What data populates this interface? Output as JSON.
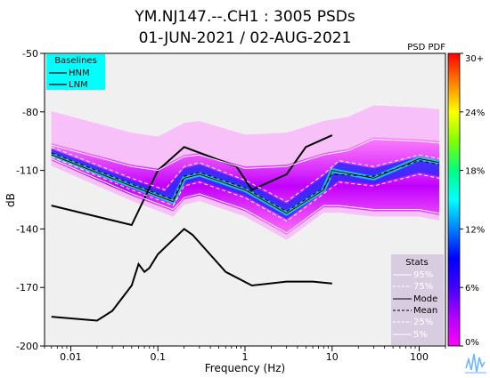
{
  "chart_data": {
    "type": "heatmap",
    "title": "YM.NJ147.--.CH1 : 3005 PSDs",
    "subtitle": "01-JUN-2021 / 02-AUG-2021",
    "xlabel": "Frequency (Hz)",
    "ylabel": "dB",
    "x_scale": "log",
    "xlim": [
      0.005,
      200
    ],
    "ylim": [
      -200,
      -50
    ],
    "x_ticks": [
      0.01,
      0.1,
      1,
      10,
      100
    ],
    "x_tick_labels": [
      "0.01",
      "0.1",
      "1",
      "10",
      "100"
    ],
    "y_ticks": [
      -50,
      -80,
      -110,
      -140,
      -170,
      -200
    ],
    "y_tick_labels": [
      "-50",
      "-80",
      "-110",
      "-140",
      "-170",
      "-200"
    ],
    "colorbar": {
      "title": "PSD PDF",
      "ticks": [
        0,
        6,
        12,
        18,
        24,
        30
      ],
      "tick_labels": [
        "0%",
        "6%",
        "12%",
        "18%",
        "24%",
        "30+"
      ],
      "colors": [
        "#ff00ff",
        "#b000ff",
        "#4000ff",
        "#0000ff",
        "#0080ff",
        "#00ffff",
        "#00ff80",
        "#80ff00",
        "#ffff00",
        "#ff8000",
        "#ff0000"
      ]
    },
    "baselines": {
      "title": "Baselines",
      "items": [
        "HNM",
        "LNM"
      ],
      "HNM": {
        "x": [
          0.006,
          0.05,
          0.1,
          0.2,
          0.8,
          1.2,
          3,
          5,
          10
        ],
        "y": [
          -128,
          -138,
          -110,
          -98,
          -108,
          -120,
          -112,
          -98,
          -92
        ]
      },
      "LNM": {
        "x": [
          0.006,
          0.02,
          0.03,
          0.05,
          0.06,
          0.07,
          0.08,
          0.1,
          0.2,
          0.25,
          0.6,
          1.2,
          3,
          6,
          10
        ],
        "y": [
          -185,
          -187,
          -182,
          -169,
          -158,
          -162,
          -160,
          -153,
          -140,
          -143,
          -162,
          -169,
          -167,
          -167,
          -168
        ]
      }
    },
    "stats": {
      "title": "Stats",
      "items": [
        "95%",
        "75%",
        "Mode",
        "Mean",
        "25%",
        "5%"
      ]
    },
    "series": [
      {
        "name": "95%",
        "x": [
          0.006,
          0.05,
          0.1,
          0.2,
          0.3,
          1,
          3,
          8,
          15,
          30,
          100,
          170
        ],
        "y": [
          -97,
          -108,
          -110,
          -103,
          -102,
          -109,
          -108,
          -102,
          -100,
          -94,
          -95,
          -96
        ]
      },
      {
        "name": "75%",
        "x": [
          0.006,
          0.05,
          0.12,
          0.2,
          0.3,
          1,
          3,
          8,
          12,
          30,
          100,
          170
        ],
        "y": [
          -98,
          -114,
          -120,
          -108,
          -106,
          -115,
          -126,
          -112,
          -105,
          -108,
          -102,
          -104
        ]
      },
      {
        "name": "Mode",
        "x": [
          0.006,
          0.05,
          0.15,
          0.2,
          0.3,
          1,
          3,
          8,
          10,
          30,
          100,
          170
        ],
        "y": [
          -102,
          -118,
          -126,
          -114,
          -112,
          -120,
          -132,
          -120,
          -110,
          -114,
          -104,
          -106
        ]
      },
      {
        "name": "Mean",
        "x": [
          0.006,
          0.05,
          0.15,
          0.2,
          0.3,
          1,
          3,
          8,
          10,
          30,
          100,
          170
        ],
        "y": [
          -101,
          -117,
          -125,
          -113,
          -111,
          -119,
          -131,
          -119,
          -112,
          -113,
          -105,
          -107
        ]
      },
      {
        "name": "25%",
        "x": [
          0.006,
          0.05,
          0.15,
          0.2,
          0.3,
          1,
          3,
          8,
          12,
          30,
          100,
          170
        ],
        "y": [
          -103,
          -120,
          -128,
          -118,
          -116,
          -124,
          -136,
          -122,
          -116,
          -118,
          -112,
          -114
        ]
      },
      {
        "name": "5%",
        "x": [
          0.006,
          0.05,
          0.15,
          0.2,
          0.3,
          1,
          3,
          8,
          12,
          30,
          100,
          170
        ],
        "y": [
          -104,
          -122,
          -130,
          -124,
          -122,
          -130,
          -142,
          -128,
          -128,
          -130,
          -130,
          -132
        ]
      }
    ]
  }
}
